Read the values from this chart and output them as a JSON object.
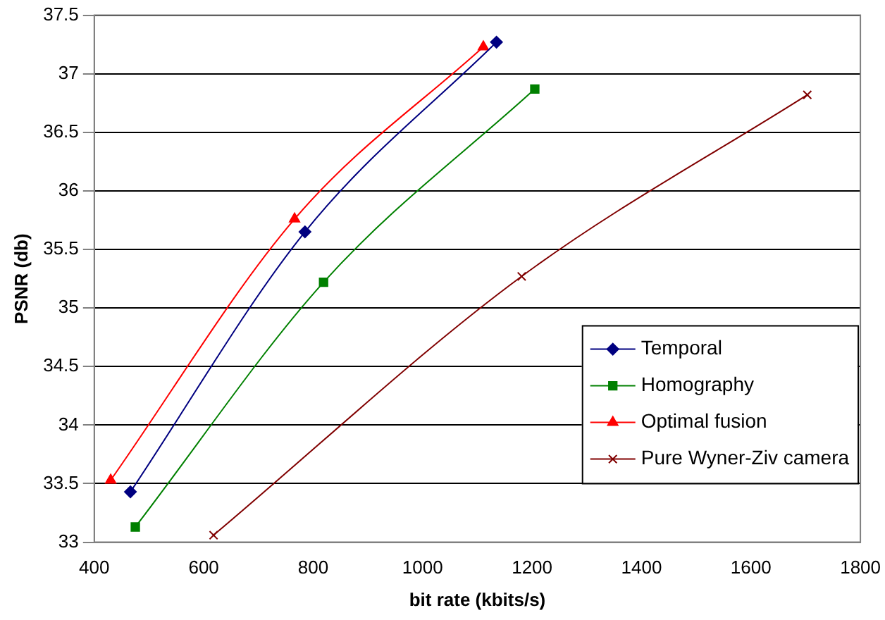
{
  "chart_data": {
    "type": "line",
    "xlabel": "bit rate (kbits/s)",
    "ylabel": "PSNR (db)",
    "xlim": [
      400,
      1800
    ],
    "xticks": [
      400,
      600,
      800,
      1000,
      1200,
      1400,
      1600,
      1800
    ],
    "ylim": [
      33,
      37.5
    ],
    "yticks": [
      33,
      33.5,
      34,
      34.5,
      35,
      35.5,
      36,
      36.5,
      37,
      37.5
    ],
    "grid": "y",
    "legend": "bottom right",
    "series": [
      {
        "name": "Temporal",
        "color": "#000080",
        "marker": "diamond",
        "x": [
          466,
          785,
          1135
        ],
        "values": [
          33.43,
          35.65,
          37.27
        ]
      },
      {
        "name": "Homography",
        "color": "#008000",
        "marker": "square",
        "x": [
          475,
          819,
          1205
        ],
        "values": [
          33.13,
          35.22,
          36.87
        ]
      },
      {
        "name": "Optimal fusion",
        "color": "#ff0000",
        "marker": "triangle",
        "x": [
          430,
          766,
          1111
        ],
        "values": [
          33.53,
          35.76,
          37.23
        ]
      },
      {
        "name": "Pure Wyner-Ziv camera",
        "color": "#800000",
        "marker": "cross",
        "x": [
          618,
          1181,
          1703
        ],
        "values": [
          33.06,
          35.27,
          36.82
        ]
      }
    ]
  }
}
